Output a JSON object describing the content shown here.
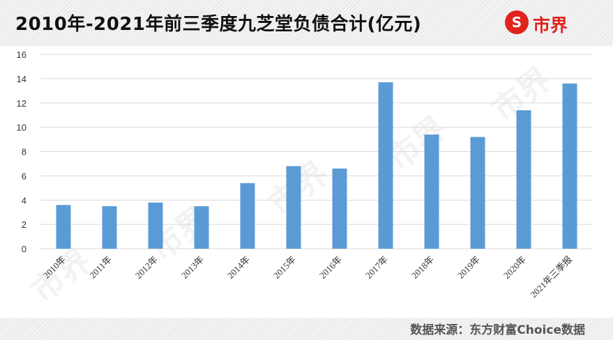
{
  "header": {
    "title": "2010年-2021年前三季度九芝堂负债合计(亿元)",
    "logo_mark": "S",
    "logo_text": "市界"
  },
  "footer": {
    "source": "数据来源：东方财富Choice数据"
  },
  "watermark": {
    "text": "市界"
  },
  "colors": {
    "bar": "#5b9bd5",
    "grid": "#d9d9d9",
    "brand": "#e0231d"
  },
  "chart_data": {
    "type": "bar",
    "title": "2010年-2021年前三季度九芝堂负债合计(亿元)",
    "categories": [
      "2010年",
      "2011年",
      "2012年",
      "2013年",
      "2014年",
      "2015年",
      "2016年",
      "2017年",
      "2018年",
      "2019年",
      "2020年",
      "2021年三季报"
    ],
    "values": [
      3.6,
      3.5,
      3.8,
      3.5,
      5.4,
      6.8,
      6.6,
      13.7,
      9.4,
      9.2,
      11.4,
      13.6
    ],
    "ylim": [
      0,
      16
    ],
    "yticks": [
      0,
      2,
      4,
      6,
      8,
      10,
      12,
      14,
      16
    ],
    "grid": true,
    "legend": "none"
  }
}
